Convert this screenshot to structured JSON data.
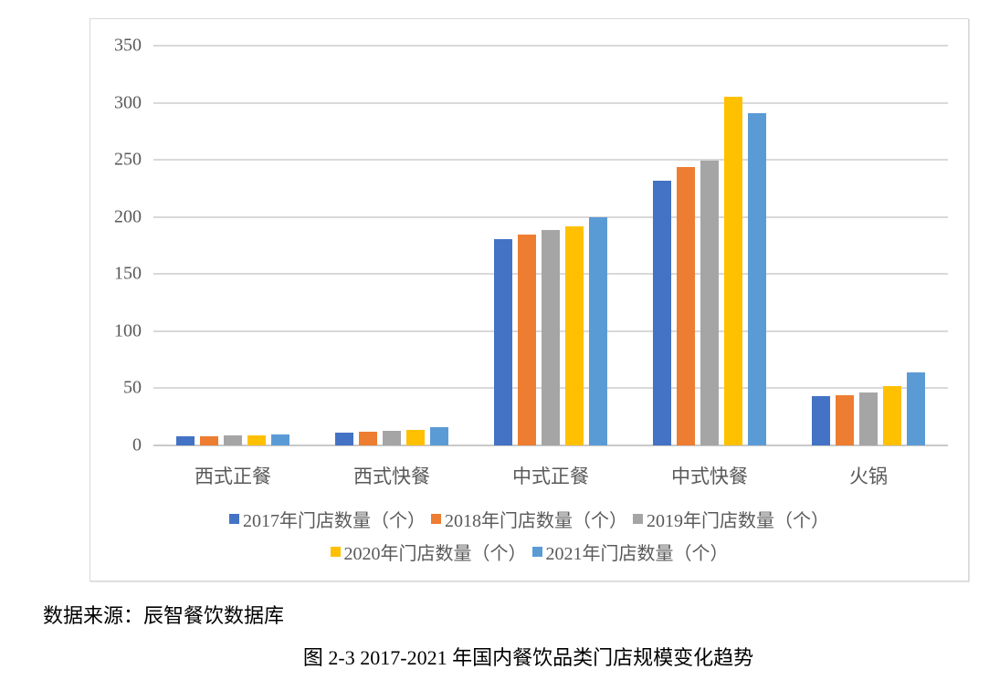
{
  "chart_data": {
    "type": "bar",
    "title": "",
    "xlabel": "",
    "ylabel": "",
    "categories": [
      "西式正餐",
      "西式快餐",
      "中式正餐",
      "中式快餐",
      "火锅"
    ],
    "series": [
      {
        "name": "2017年门店数量（个）",
        "color": "#4472C4",
        "values": [
          8,
          11,
          181,
          232,
          43
        ]
      },
      {
        "name": "2018年门店数量（个）",
        "color": "#ED7D31",
        "values": [
          8,
          12,
          185,
          244,
          44
        ]
      },
      {
        "name": "2019年门店数量（个）",
        "color": "#A5A5A5",
        "values": [
          9,
          13,
          189,
          249,
          46
        ]
      },
      {
        "name": "2020年门店数量（个）",
        "color": "#FFC000",
        "values": [
          9,
          14,
          192,
          305,
          52
        ]
      },
      {
        "name": "2021年门店数量（个）",
        "color": "#5B9BD5",
        "values": [
          10,
          16,
          200,
          291,
          64
        ]
      }
    ],
    "ylim": [
      0,
      350
    ],
    "ytick_step": 50,
    "grid": true,
    "legend_position": "bottom",
    "legend_rows": [
      3,
      2
    ]
  },
  "colors": {
    "gridline": "#D9D9D9",
    "axis_text": "#595959",
    "chart_border": "#D9D9D9",
    "background": "#FFFFFF"
  },
  "footer": {
    "source": "数据来源：辰智餐饮数据库",
    "caption": "图 2-3 2017-2021 年国内餐饮品类门店规模变化趋势"
  }
}
